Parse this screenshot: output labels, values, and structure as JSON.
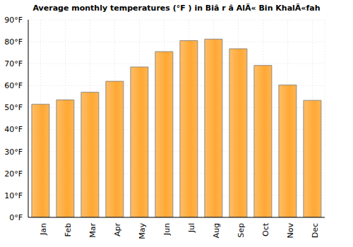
{
  "chart_data": {
    "type": "bar",
    "title": "Average monthly temperatures (°F ) in Biâ r â AlÄ« Bin KhalÄ«fah",
    "categories": [
      "Jan",
      "Feb",
      "Mar",
      "Apr",
      "May",
      "Jun",
      "Jul",
      "Aug",
      "Sep",
      "Oct",
      "Nov",
      "Dec"
    ],
    "values": [
      51.5,
      53.5,
      57,
      62,
      68.5,
      75.5,
      80.5,
      81.2,
      76.8,
      69.2,
      60.3,
      53.3
    ],
    "color": "#ffa834",
    "ylim": [
      0,
      90
    ],
    "yticks": [
      {
        "value": 0,
        "label": "0°F"
      },
      {
        "value": 10,
        "label": "10°F"
      },
      {
        "value": 20,
        "label": "20°F"
      },
      {
        "value": 30,
        "label": "30°F"
      },
      {
        "value": 40,
        "label": "40°F"
      },
      {
        "value": 50,
        "label": "50°F"
      },
      {
        "value": 60,
        "label": "60°F"
      },
      {
        "value": 70,
        "label": "70°F"
      },
      {
        "value": 80,
        "label": "80°F"
      },
      {
        "value": 90,
        "label": "90°F"
      }
    ],
    "grid": true
  }
}
